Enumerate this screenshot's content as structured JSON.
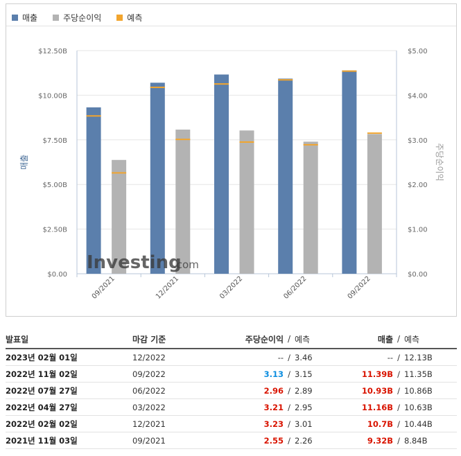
{
  "legend": {
    "items": [
      {
        "label": "매출",
        "color": "#5b7fac"
      },
      {
        "label": "주당순이익",
        "color": "#b3b3b3"
      },
      {
        "label": "예측",
        "color": "#f2a52e"
      }
    ]
  },
  "watermark": {
    "brand": "Investing",
    "suffix": ".com"
  },
  "chart_data": {
    "type": "bar",
    "categories": [
      "09/2021",
      "12/2021",
      "03/2022",
      "06/2022",
      "09/2022"
    ],
    "series": [
      {
        "name": "매출",
        "axis": "left",
        "values": [
          9.32,
          10.7,
          11.16,
          10.93,
          11.39
        ],
        "forecast": [
          8.84,
          10.44,
          10.63,
          10.86,
          11.35
        ],
        "color": "#5b7fac"
      },
      {
        "name": "주당순이익",
        "axis": "right",
        "values": [
          2.55,
          3.23,
          3.21,
          2.96,
          3.13
        ],
        "forecast": [
          2.26,
          3.01,
          2.95,
          2.89,
          3.15
        ],
        "color": "#b3b3b3"
      }
    ],
    "forecast_color": "#f2a52e",
    "ylabel_left": "매출",
    "ylabel_right": "주당순이익",
    "ylim_left": [
      0,
      12.5
    ],
    "ylim_right": [
      0,
      5
    ],
    "yticks_left": [
      "$0.00",
      "$2.50B",
      "$5.00B",
      "$7.50B",
      "$10.00B",
      "$12.50B"
    ],
    "yticks_right": [
      "$0.00",
      "$1.00",
      "$2.00",
      "$3.00",
      "$4.00",
      "$5.00"
    ],
    "grid": true
  },
  "table": {
    "headers": {
      "date": "발표일",
      "period": "마감 기준",
      "eps": "주당순이익",
      "sep": "/",
      "eps_fc": "예측",
      "rev": "매출",
      "rev_fc": "예측"
    },
    "rows": [
      {
        "date": "2023년 02월 01일",
        "period": "12/2022",
        "eps": "--",
        "eps_color": "plain",
        "eps_fc": "3.46",
        "rev": "--",
        "rev_color": "plain",
        "rev_fc": "12.13B"
      },
      {
        "date": "2022년 11월 02일",
        "period": "09/2022",
        "eps": "3.13",
        "eps_color": "blue",
        "eps_fc": "3.15",
        "rev": "11.39B",
        "rev_color": "red",
        "rev_fc": "11.35B"
      },
      {
        "date": "2022년 07월 27일",
        "period": "06/2022",
        "eps": "2.96",
        "eps_color": "red",
        "eps_fc": "2.89",
        "rev": "10.93B",
        "rev_color": "red",
        "rev_fc": "10.86B"
      },
      {
        "date": "2022년 04월 27일",
        "period": "03/2022",
        "eps": "3.21",
        "eps_color": "red",
        "eps_fc": "2.95",
        "rev": "11.16B",
        "rev_color": "red",
        "rev_fc": "10.63B"
      },
      {
        "date": "2022년 02월 02일",
        "period": "12/2021",
        "eps": "3.23",
        "eps_color": "red",
        "eps_fc": "3.01",
        "rev": "10.7B",
        "rev_color": "red",
        "rev_fc": "10.44B"
      },
      {
        "date": "2021년 11월 03일",
        "period": "09/2021",
        "eps": "2.55",
        "eps_color": "red",
        "eps_fc": "2.26",
        "rev": "9.32B",
        "rev_color": "red",
        "rev_fc": "8.84B"
      }
    ]
  }
}
